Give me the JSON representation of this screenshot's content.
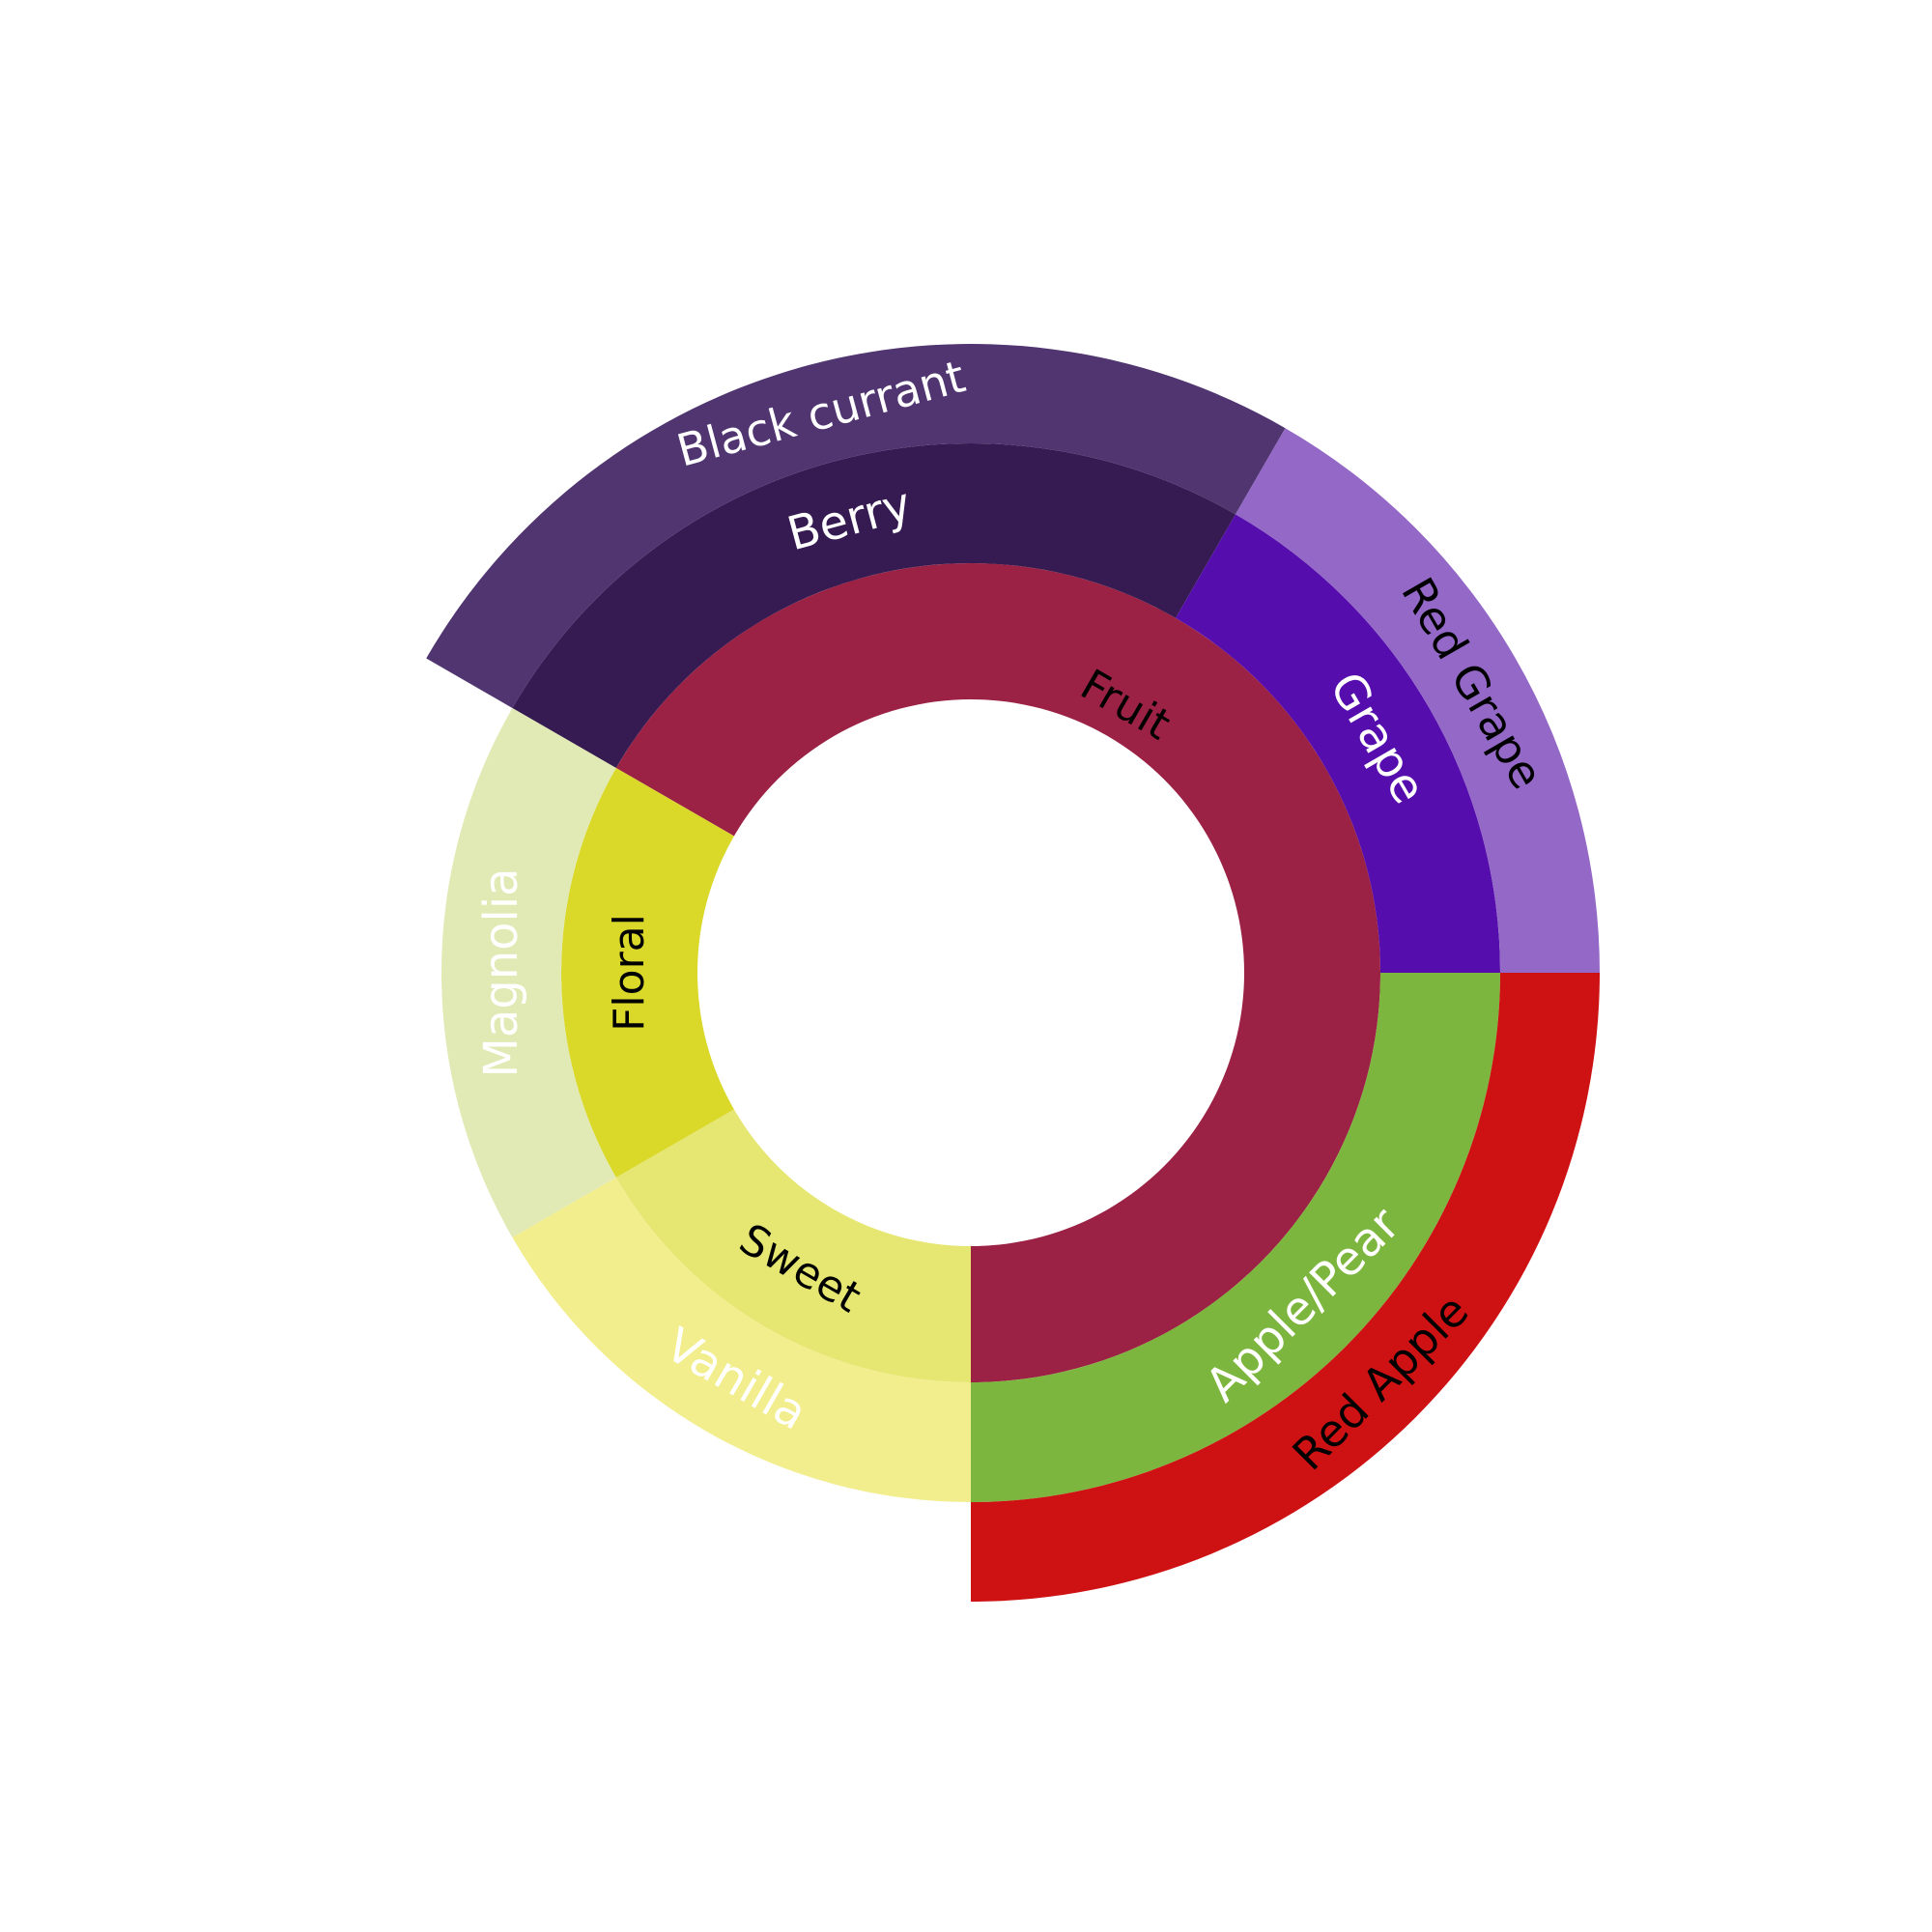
{
  "chart_data": {
    "type": "sunburst",
    "title": "",
    "rings": [
      {
        "level": 1,
        "segments": [
          {
            "label": "Fruit",
            "start_deg": 210,
            "end_deg": 450,
            "color": "#9B2245",
            "text_color": "#000000"
          },
          {
            "label": "Floral",
            "start_deg": 150,
            "end_deg": 210,
            "color": "#DAD92A",
            "text_color": "#000000"
          },
          {
            "label": "Sweet",
            "start_deg": 90,
            "end_deg": 150,
            "color": "#E6E672",
            "text_color": "#000000"
          }
        ]
      },
      {
        "level": 2,
        "segments": [
          {
            "label": "Berry",
            "start_deg": 210,
            "end_deg": 300,
            "color": "#361B52",
            "text_color": "#FFFFFF"
          },
          {
            "label": "Grape",
            "start_deg": 300,
            "end_deg": 360,
            "color": "#560DAD",
            "text_color": "#FFFFFF"
          },
          {
            "label": "Apple/Pear",
            "start_deg": 360,
            "end_deg": 450,
            "color": "#7DB63E",
            "text_color": "#FFFFFF"
          },
          {
            "label": "Magnolia",
            "start_deg": 150,
            "end_deg": 210,
            "color": "#E1E9B4",
            "text_color": "#FFFFFF"
          },
          {
            "label": "Vanilla",
            "start_deg": 90,
            "end_deg": 150,
            "color": "#F2EE8D",
            "text_color": "#FFFFFF"
          }
        ]
      },
      {
        "level": 3,
        "segments": [
          {
            "label": "Black currant",
            "start_deg": 210,
            "end_deg": 300,
            "color": "#503570",
            "text_color": "#FFFFFF"
          },
          {
            "label": "Red Grape",
            "start_deg": 300,
            "end_deg": 360,
            "color": "#9468C7",
            "text_color": "#000000"
          },
          {
            "label": "Red Apple",
            "start_deg": 360,
            "end_deg": 450,
            "color": "#CE1214",
            "text_color": "#000000"
          }
        ]
      }
    ]
  }
}
